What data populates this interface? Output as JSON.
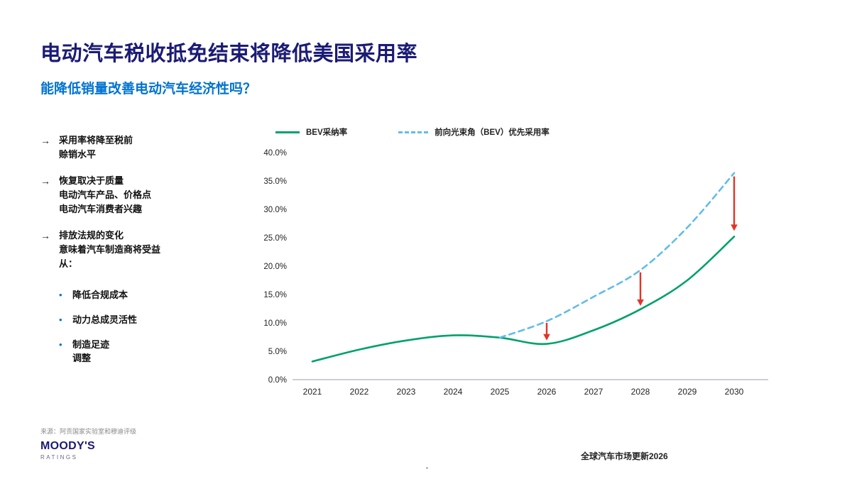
{
  "slide": {
    "title": "电动汽车税收抵免结束将降低美国采用率",
    "subtitle": "能降低销量改善电动汽车经济性吗？",
    "bullets": [
      {
        "text": "采用率将降至税前\n赊销水平"
      },
      {
        "text": "恢复取决于质量\n电动汽车产品、价格点\n电动汽车消费者兴趣"
      },
      {
        "text": "排放法规的变化\n意味着汽车制造商将受益\n从："
      }
    ],
    "sub_bullets": [
      {
        "text": "降低合规成本"
      },
      {
        "text": "动力总成灵活性"
      },
      {
        "text": "制造足迹\n调整"
      }
    ],
    "source": "来源：阿贡国家实验室和穆迪评级",
    "logo": {
      "name": "MOODY'S",
      "sub": "RATINGS"
    },
    "footer_right": "全球汽车市场更新2026"
  },
  "colors": {
    "title_navy": "#1B1B75",
    "subtitle_blue": "#0073CF",
    "bev_green": "#00A16B",
    "forecast_blue": "#63BCE9",
    "arrow_red": "#E03428"
  },
  "chart_data": {
    "type": "line",
    "categories": [
      "2021",
      "2022",
      "2023",
      "2024",
      "2025",
      "2026",
      "2027",
      "2028",
      "2029",
      "2030"
    ],
    "series": [
      {
        "name": "BEV采纳率",
        "color": "#00A16B",
        "style": "solid",
        "values": [
          3.2,
          5.3,
          6.9,
          7.8,
          7.4,
          6.3,
          8.7,
          12.4,
          17.5,
          25.2
        ]
      },
      {
        "name": "前向光束角（BEV）优先采用率",
        "color": "#63BCE9",
        "style": "dashed",
        "values": [
          null,
          null,
          null,
          null,
          7.4,
          10.3,
          14.6,
          19.3,
          26.8,
          36.4
        ]
      }
    ],
    "annotations": [
      {
        "type": "arrow-down",
        "x": "2026",
        "from": 10.0,
        "to": 6.9,
        "color": "#E03428"
      },
      {
        "type": "arrow-down",
        "x": "2028",
        "from": 18.9,
        "to": 13.0,
        "color": "#E03428"
      },
      {
        "type": "arrow-down",
        "x": "2030",
        "from": 35.8,
        "to": 26.2,
        "color": "#E03428"
      }
    ],
    "ylim": [
      0,
      40
    ],
    "ytick_step": 5,
    "ytick_format": "percent1",
    "legend_position": "top",
    "grid": false
  }
}
